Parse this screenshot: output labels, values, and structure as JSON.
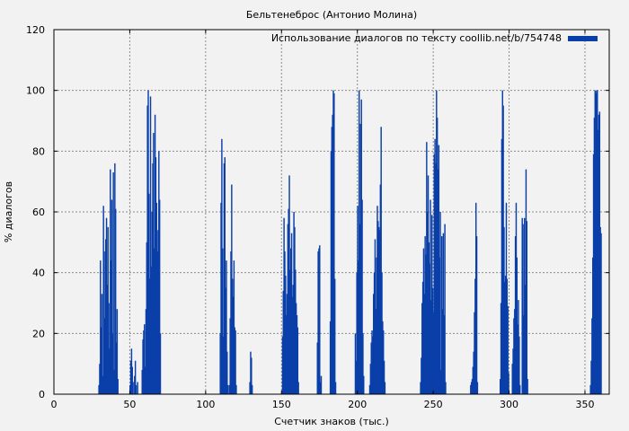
{
  "chart_data": {
    "type": "bar",
    "title": "Бельтенеброс (Антонио Молина)",
    "xlabel": "Счетчик знаков (тыс.)",
    "ylabel": "% диалогов",
    "xlim": [
      0,
      366
    ],
    "ylim": [
      0,
      120
    ],
    "xticks": [
      0,
      50,
      100,
      150,
      200,
      250,
      300,
      350
    ],
    "yticks": [
      0,
      20,
      40,
      60,
      80,
      100,
      120
    ],
    "grid": true,
    "legend_position": "top-right",
    "series": [
      {
        "name": "Использование диалогов по тексту coollib.net/b/754748",
        "color": "#0a3fa8",
        "points": [
          [
            29.5,
            3
          ],
          [
            30,
            10
          ],
          [
            30.5,
            44
          ],
          [
            31,
            22
          ],
          [
            31.5,
            33
          ],
          [
            32,
            6
          ],
          [
            32.5,
            62
          ],
          [
            33,
            47
          ],
          [
            33.5,
            25
          ],
          [
            34,
            51
          ],
          [
            34.5,
            58
          ],
          [
            35,
            36
          ],
          [
            35.5,
            55
          ],
          [
            36,
            30
          ],
          [
            36.5,
            15
          ],
          [
            37,
            74
          ],
          [
            37.5,
            44
          ],
          [
            38,
            64
          ],
          [
            38.5,
            20
          ],
          [
            39,
            73
          ],
          [
            39.5,
            8
          ],
          [
            40,
            76
          ],
          [
            40.5,
            61
          ],
          [
            41,
            17
          ],
          [
            41.5,
            28
          ],
          [
            42,
            5
          ],
          [
            50,
            3
          ],
          [
            50.5,
            11
          ],
          [
            51,
            15
          ],
          [
            51.5,
            9
          ],
          [
            52,
            4
          ],
          [
            53,
            6
          ],
          [
            53.5,
            11
          ],
          [
            54,
            3
          ],
          [
            55,
            4
          ],
          [
            58,
            8
          ],
          [
            58.5,
            18
          ],
          [
            59,
            21
          ],
          [
            59.5,
            23
          ],
          [
            60,
            9
          ],
          [
            60.5,
            28
          ],
          [
            61,
            50
          ],
          [
            61.5,
            95
          ],
          [
            62,
            100
          ],
          [
            62.5,
            66
          ],
          [
            63,
            38
          ],
          [
            63.5,
            98
          ],
          [
            64,
            42
          ],
          [
            64.5,
            60
          ],
          [
            65,
            76
          ],
          [
            65.5,
            86
          ],
          [
            66,
            48
          ],
          [
            66.5,
            92
          ],
          [
            67,
            78
          ],
          [
            67.5,
            63
          ],
          [
            68,
            47
          ],
          [
            68.5,
            54
          ],
          [
            69,
            80
          ],
          [
            69.5,
            64
          ],
          [
            70,
            20
          ],
          [
            109.5,
            20
          ],
          [
            110,
            63
          ],
          [
            110.5,
            84
          ],
          [
            111,
            48
          ],
          [
            111.5,
            19
          ],
          [
            112,
            76
          ],
          [
            112.5,
            78
          ],
          [
            113,
            35
          ],
          [
            113.5,
            44
          ],
          [
            114,
            14
          ],
          [
            114.5,
            3
          ],
          [
            115.5,
            3
          ],
          [
            116,
            25
          ],
          [
            116.5,
            47
          ],
          [
            117,
            69
          ],
          [
            117.5,
            38
          ],
          [
            118,
            32
          ],
          [
            118.5,
            44
          ],
          [
            119,
            22
          ],
          [
            119.5,
            21
          ],
          [
            120,
            3
          ],
          [
            129,
            4
          ],
          [
            129.5,
            14
          ],
          [
            130,
            12
          ],
          [
            130.5,
            3
          ],
          [
            150.5,
            19
          ],
          [
            151,
            34
          ],
          [
            151.5,
            58
          ],
          [
            152,
            47
          ],
          [
            152.5,
            39
          ],
          [
            153,
            26
          ],
          [
            153.5,
            33
          ],
          [
            154,
            56
          ],
          [
            154.5,
            61
          ],
          [
            155,
            72
          ],
          [
            155.5,
            41
          ],
          [
            156,
            48
          ],
          [
            156.5,
            53
          ],
          [
            157,
            32
          ],
          [
            157.5,
            36
          ],
          [
            158,
            60
          ],
          [
            158.5,
            55
          ],
          [
            159,
            41
          ],
          [
            159.5,
            30
          ],
          [
            160,
            26
          ],
          [
            160.5,
            22
          ],
          [
            161,
            4
          ],
          [
            173.5,
            17
          ],
          [
            174,
            47
          ],
          [
            174.5,
            48
          ],
          [
            175,
            49
          ],
          [
            175.5,
            4
          ],
          [
            176,
            6
          ],
          [
            182,
            24
          ],
          [
            182.5,
            80
          ],
          [
            183,
            88
          ],
          [
            183.5,
            92
          ],
          [
            184,
            100
          ],
          [
            184.5,
            99
          ],
          [
            185,
            38
          ],
          [
            185.5,
            4
          ],
          [
            198.5,
            20
          ],
          [
            199,
            11
          ],
          [
            199.5,
            40
          ],
          [
            200,
            62
          ],
          [
            200.5,
            44
          ],
          [
            201,
            100
          ],
          [
            201.5,
            56
          ],
          [
            202,
            89
          ],
          [
            202.5,
            97
          ],
          [
            203,
            64
          ],
          [
            203.5,
            20
          ],
          [
            204,
            6
          ],
          [
            208,
            3
          ],
          [
            208.5,
            10
          ],
          [
            209,
            17
          ],
          [
            209.5,
            21
          ],
          [
            210,
            19
          ],
          [
            210.5,
            33
          ],
          [
            211,
            40
          ],
          [
            211.5,
            51
          ],
          [
            212,
            28
          ],
          [
            212.5,
            45
          ],
          [
            213,
            62
          ],
          [
            213.5,
            57
          ],
          [
            214,
            55
          ],
          [
            214.5,
            54
          ],
          [
            215,
            69
          ],
          [
            215.5,
            88
          ],
          [
            216,
            40
          ],
          [
            216.5,
            24
          ],
          [
            217,
            21
          ],
          [
            217.5,
            11
          ],
          [
            218,
            4
          ],
          [
            241.5,
            4
          ],
          [
            242,
            12
          ],
          [
            242.5,
            30
          ],
          [
            243,
            37
          ],
          [
            243.5,
            48
          ],
          [
            244,
            33
          ],
          [
            244.5,
            52
          ],
          [
            245,
            46
          ],
          [
            245.5,
            83
          ],
          [
            246,
            60
          ],
          [
            246.5,
            72
          ],
          [
            247,
            50
          ],
          [
            247.5,
            43
          ],
          [
            248,
            64
          ],
          [
            248.5,
            31
          ],
          [
            249,
            59
          ],
          [
            249.5,
            35
          ],
          [
            250,
            27
          ],
          [
            250.5,
            79
          ],
          [
            251,
            84
          ],
          [
            251.5,
            76
          ],
          [
            252,
            100
          ],
          [
            252.5,
            91
          ],
          [
            253,
            74
          ],
          [
            253.5,
            82
          ],
          [
            254,
            45
          ],
          [
            254.5,
            60
          ],
          [
            255,
            8
          ],
          [
            255.5,
            52
          ],
          [
            256,
            28
          ],
          [
            256.5,
            53
          ],
          [
            257,
            26
          ],
          [
            257.5,
            56
          ],
          [
            258,
            4
          ],
          [
            274.5,
            3
          ],
          [
            275,
            4
          ],
          [
            275.5,
            5
          ],
          [
            276,
            9
          ],
          [
            276.5,
            14
          ],
          [
            277,
            27
          ],
          [
            277.5,
            38
          ],
          [
            278,
            63
          ],
          [
            278.5,
            52
          ],
          [
            279,
            4
          ],
          [
            294,
            5
          ],
          [
            294.5,
            30
          ],
          [
            295,
            84
          ],
          [
            295.5,
            100
          ],
          [
            296,
            95
          ],
          [
            296.5,
            55
          ],
          [
            297,
            37
          ],
          [
            297.5,
            39
          ],
          [
            298,
            63
          ],
          [
            298.5,
            38
          ],
          [
            299,
            29
          ],
          [
            299.5,
            7
          ],
          [
            302,
            10
          ],
          [
            302.5,
            15
          ],
          [
            303,
            25
          ],
          [
            303.5,
            28
          ],
          [
            304,
            52
          ],
          [
            304.5,
            63
          ],
          [
            305,
            45
          ],
          [
            305.5,
            23
          ],
          [
            306,
            31
          ],
          [
            306.5,
            19
          ],
          [
            307,
            3
          ],
          [
            308.5,
            58
          ],
          [
            309,
            56
          ],
          [
            309.5,
            26
          ],
          [
            310,
            58
          ],
          [
            310.5,
            36
          ],
          [
            311,
            74
          ],
          [
            311.5,
            57
          ],
          [
            312,
            5
          ],
          [
            353.5,
            3
          ],
          [
            354,
            11
          ],
          [
            354.5,
            25
          ],
          [
            355,
            45
          ],
          [
            355.5,
            79
          ],
          [
            356,
            91
          ],
          [
            356.5,
            100
          ],
          [
            357,
            99
          ],
          [
            357.5,
            100
          ],
          [
            358,
            100
          ],
          [
            358.5,
            87
          ],
          [
            359,
            92
          ],
          [
            359.5,
            93
          ],
          [
            360,
            55
          ],
          [
            360.5,
            53
          ]
        ]
      }
    ]
  }
}
